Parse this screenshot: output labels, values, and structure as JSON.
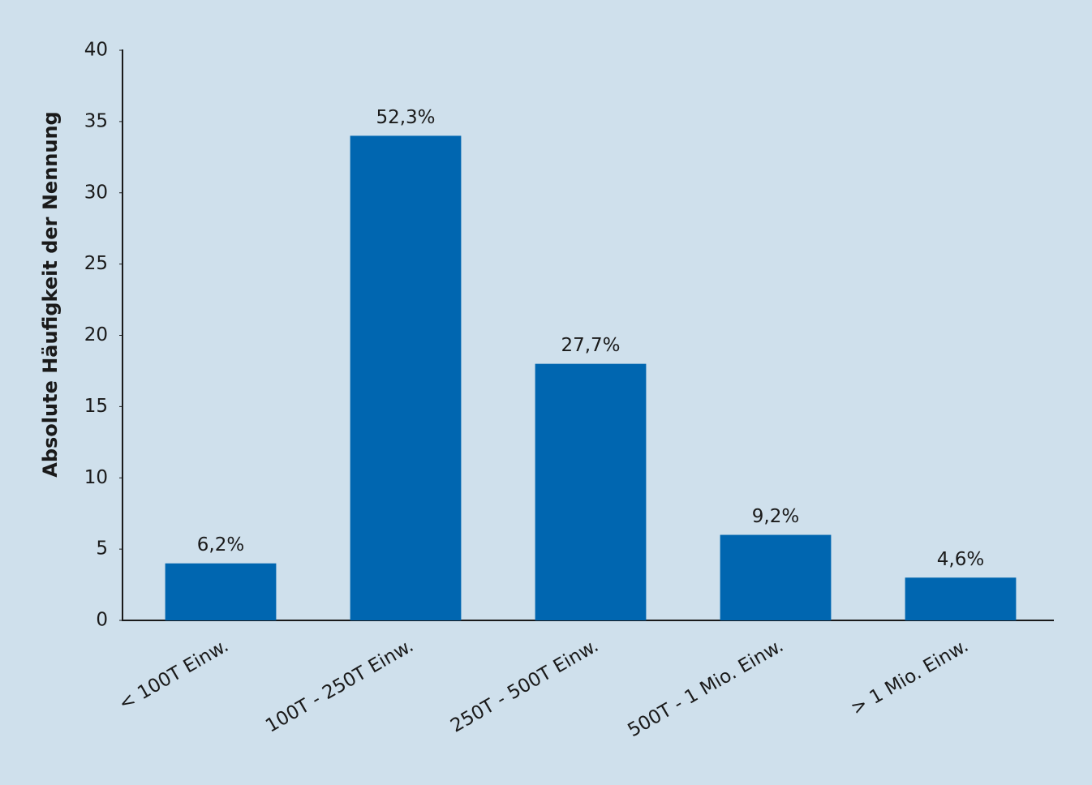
{
  "chart_data": {
    "type": "bar",
    "y_label": "Absolute Häufigkeit der Nennung",
    "categories": [
      "< 100T Einw.",
      "100T - 250T Einw.",
      "250T - 500T Einw.",
      "500T - 1 Mio. Einw.",
      "> 1 Mio. Einw."
    ],
    "values": [
      4,
      34,
      18,
      6,
      3
    ],
    "data_labels": [
      "6,2%",
      "52,3%",
      "27,7%",
      "9,2%",
      "4,6%"
    ],
    "color": "#0066b0",
    "ylim": [
      0,
      40
    ],
    "yticks": [
      0,
      5,
      10,
      15,
      20,
      25,
      30,
      35,
      40
    ],
    "grid": false
  }
}
